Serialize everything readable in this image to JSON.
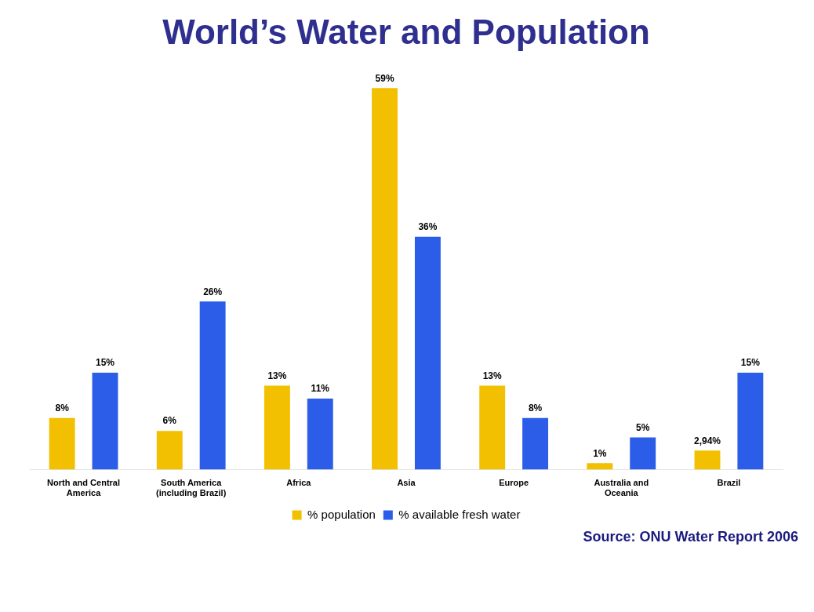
{
  "chart_data": {
    "type": "bar",
    "title": "World’s Water and Population",
    "categories": [
      "North and Central America",
      "South America (including Brazil)",
      "Africa",
      "Asia",
      "Europe",
      "Australia and Oceania",
      "Brazil"
    ],
    "series": [
      {
        "name": "% population",
        "color": "#f2c000",
        "values": [
          8,
          6,
          13,
          59,
          13,
          1,
          2.94
        ],
        "value_labels": [
          "8%",
          "6%",
          "13%",
          "59%",
          "13%",
          "1%",
          "2,94%"
        ]
      },
      {
        "name": "% available fresh water",
        "color": "#2b5de8",
        "values": [
          15,
          26,
          11,
          36,
          8,
          5,
          15
        ],
        "value_labels": [
          "15%",
          "26%",
          "11%",
          "36%",
          "8%",
          "5%",
          "15%"
        ]
      }
    ],
    "legend": "bottom",
    "grid": false,
    "annotations": [
      "Source: ONU Water Report 2006"
    ]
  }
}
